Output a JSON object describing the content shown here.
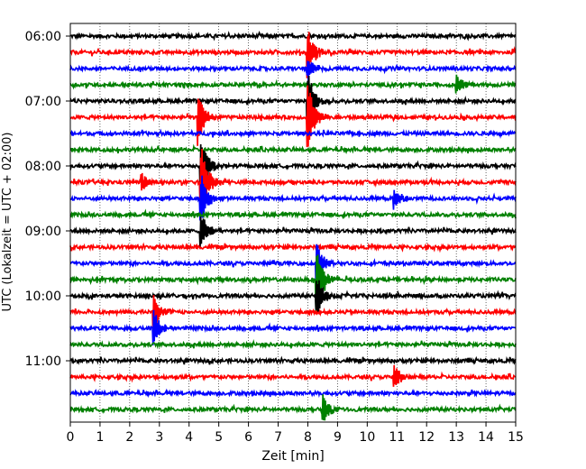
{
  "chart_data": {
    "type": "line",
    "subtype": "helicorder",
    "xlabel": "Zeit  [min]",
    "ylabel": "UTC (Lokalzeit = UTC + 02:00)",
    "xlim": [
      0,
      15
    ],
    "x_ticks": [
      "0",
      "1",
      "2",
      "3",
      "4",
      "5",
      "6",
      "7",
      "8",
      "9",
      "10",
      "11",
      "12",
      "13",
      "14",
      "15"
    ],
    "y_tick_labels": [
      "06:00",
      "07:00",
      "08:00",
      "09:00",
      "10:00",
      "11:00"
    ],
    "grid": "vertical dotted at each minute",
    "rows_start": "06:00",
    "row_interval_min": 15,
    "row_count": 24,
    "trace_colors": [
      "#000000",
      "#ff0000",
      "#0000ff",
      "#008000"
    ],
    "events": [
      {
        "row": 1,
        "minute": 8.0,
        "amplitude": 1.6
      },
      {
        "row": 2,
        "minute": 8.0,
        "amplitude": 0.8
      },
      {
        "row": 4,
        "minute": 8.0,
        "amplitude": 2.0
      },
      {
        "row": 5,
        "minute": 8.0,
        "amplitude": 2.2
      },
      {
        "row": 3,
        "minute": 13.0,
        "amplitude": 0.8
      },
      {
        "row": 5,
        "minute": 4.3,
        "amplitude": 1.9
      },
      {
        "row": 8,
        "minute": 4.4,
        "amplitude": 2.4
      },
      {
        "row": 9,
        "minute": 4.4,
        "amplitude": 2.8
      },
      {
        "row": 10,
        "minute": 4.4,
        "amplitude": 1.6
      },
      {
        "row": 12,
        "minute": 4.4,
        "amplitude": 1.2
      },
      {
        "row": 9,
        "minute": 2.4,
        "amplitude": 0.6
      },
      {
        "row": 10,
        "minute": 10.9,
        "amplitude": 0.7
      },
      {
        "row": 14,
        "minute": 8.3,
        "amplitude": 1.3
      },
      {
        "row": 15,
        "minute": 8.3,
        "amplitude": 2.0
      },
      {
        "row": 16,
        "minute": 8.3,
        "amplitude": 1.4
      },
      {
        "row": 17,
        "minute": 2.8,
        "amplitude": 1.4
      },
      {
        "row": 18,
        "minute": 2.8,
        "amplitude": 1.4
      },
      {
        "row": 21,
        "minute": 10.9,
        "amplitude": 0.8
      },
      {
        "row": 23,
        "minute": 8.5,
        "amplitude": 1.0
      }
    ]
  }
}
